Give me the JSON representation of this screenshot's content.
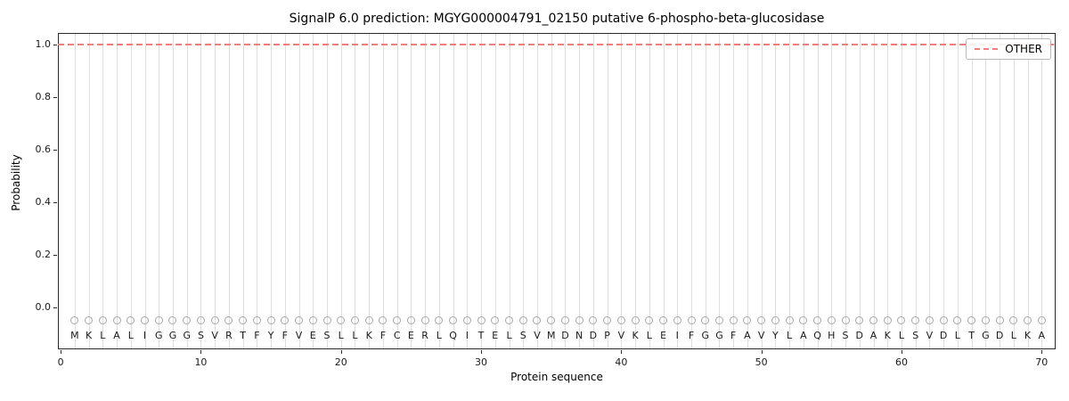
{
  "chart_data": {
    "type": "line",
    "title": "SignalP 6.0 prediction: MGYG000004791_02150 putative 6-phospho-beta-glucosidase",
    "xlabel": "Protein sequence",
    "ylabel": "Probability",
    "xlim": [
      -0.2,
      71
    ],
    "ylim": [
      -0.16,
      1.045
    ],
    "xticks": [
      0,
      10,
      20,
      30,
      40,
      50,
      60,
      70
    ],
    "yticks": [
      "0.0",
      "0.2",
      "0.4",
      "0.6",
      "0.8",
      "1.0"
    ],
    "ytick_values": [
      0.0,
      0.2,
      0.4,
      0.6,
      0.8,
      1.0
    ],
    "grid": "vertical-per-residue",
    "legend": {
      "position": "upper-right",
      "entries": [
        {
          "label": "OTHER",
          "color": "#f47c7c",
          "style": "dashed"
        }
      ]
    },
    "sequence": [
      "M",
      "K",
      "L",
      "A",
      "L",
      "I",
      "G",
      "G",
      "G",
      "S",
      "V",
      "R",
      "T",
      "F",
      "Y",
      "F",
      "V",
      "E",
      "S",
      "L",
      "L",
      "K",
      "F",
      "C",
      "E",
      "R",
      "L",
      "Q",
      "I",
      "T",
      "E",
      "L",
      "S",
      "V",
      "M",
      "D",
      "N",
      "D",
      "P",
      "V",
      "K",
      "L",
      "E",
      "I",
      "F",
      "G",
      "G",
      "F",
      "A",
      "V",
      "Y",
      "L",
      "A",
      "Q",
      "H",
      "S",
      "D",
      "A",
      "K",
      "L",
      "S",
      "V",
      "D",
      "L",
      "T",
      "G",
      "D",
      "L",
      "K",
      "A"
    ],
    "series": [
      {
        "name": "OTHER",
        "value": 1.0,
        "marker_y": -0.05,
        "color": "#f47c7c",
        "style": "dashed",
        "note": "constant probability 1.0 across all 70 residues"
      }
    ],
    "colors": {
      "grid": "#dedede",
      "axis": "#2a2a2a",
      "marker": "#a8a8a8",
      "line": "#f47c7c"
    }
  }
}
